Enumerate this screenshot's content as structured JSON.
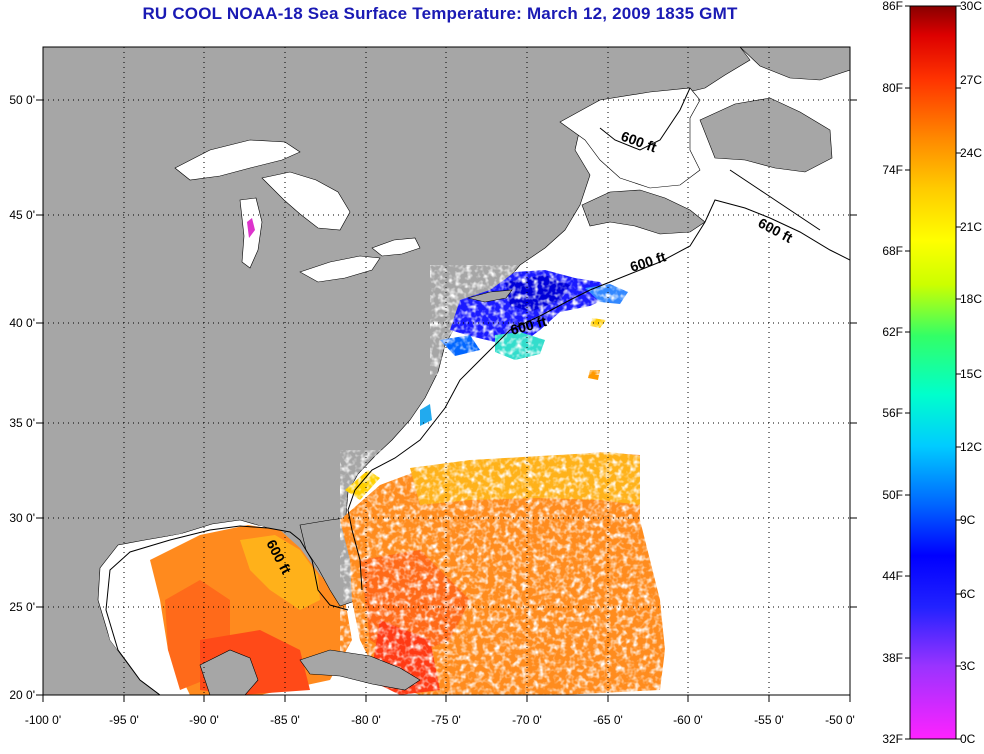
{
  "title": "RU COOL  NOAA-18  Sea Surface Temperature:  March 12, 2009 1835 GMT",
  "axes": {
    "lon_ticks": [
      "-100 0'",
      "-95 0'",
      "-90 0'",
      "-85 0'",
      "-80 0'",
      "-75 0'",
      "-70 0'",
      "-65 0'",
      "-60 0'",
      "-55 0'",
      "-50 0'"
    ],
    "lat_ticks": [
      "50 0'",
      "45 0'",
      "40 0'",
      "35 0'",
      "30 0'",
      "25 0'",
      "20 0'"
    ],
    "lon_range": [
      -100,
      -50
    ],
    "lat_range": [
      20,
      52.5
    ]
  },
  "isobath_labels": [
    "600 ft",
    "600 ft",
    "600 ft",
    "600 ft",
    "600 ft"
  ],
  "colorbar": {
    "fahrenheit": [
      "86F",
      "80F",
      "74F",
      "68F",
      "62F",
      "56F",
      "50F",
      "44F",
      "38F",
      "32F"
    ],
    "celsius": [
      "30C",
      "27C",
      "24C",
      "21C",
      "18C",
      "15C",
      "12C",
      "9C",
      "6C",
      "3C",
      "0C"
    ],
    "range_c": [
      0,
      30
    ],
    "colors": [
      "#ff22ff",
      "#9933ff",
      "#2222ff",
      "#0000ff",
      "#0066ff",
      "#00ccff",
      "#00ffcc",
      "#33ff66",
      "#ccff00",
      "#ffff00",
      "#ffcc00",
      "#ff8800",
      "#ff3300",
      "#dd0000",
      "#880000"
    ]
  },
  "colors": {
    "land": "#a6a6a6",
    "ocean": "#ffffff",
    "title": "#1a1ab4"
  }
}
